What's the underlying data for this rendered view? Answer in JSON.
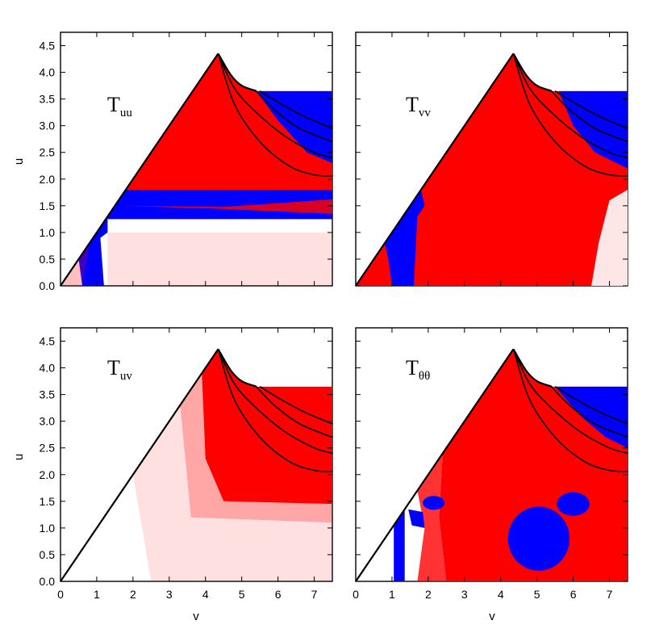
{
  "chart_data": {
    "type": "heatmap",
    "colors": {
      "positive": "#ff0000",
      "negative": "#0000ff",
      "zero": "#ffffff",
      "curve": "#000000"
    },
    "shared_axes": {
      "xlabel": "v",
      "ylabel": "u",
      "xlim": [
        0,
        7.5
      ],
      "ylim": [
        0,
        4.75
      ],
      "xticks": [
        "0",
        "1",
        "2",
        "3",
        "4",
        "5",
        "6",
        "7"
      ],
      "yticks": [
        "0.0",
        "0.5",
        "1.0",
        "1.5",
        "2.0",
        "2.5",
        "3.0",
        "3.5",
        "4.0",
        "4.5"
      ]
    },
    "domain_boundary": {
      "diagonal": [
        [
          0,
          0
        ],
        [
          4.35,
          4.35
        ]
      ],
      "apex": [
        4.35,
        4.35
      ],
      "outer_curve": [
        [
          4.35,
          4.35
        ],
        [
          4.7,
          3.95
        ],
        [
          5.0,
          3.75
        ],
        [
          5.4,
          3.65
        ]
      ],
      "cutoff_u": 3.65,
      "inner_curves": [
        [
          [
            4.35,
            4.35
          ],
          [
            4.8,
            3.4
          ],
          [
            5.5,
            2.7
          ],
          [
            6.3,
            2.25
          ],
          [
            7.0,
            2.08
          ],
          [
            7.5,
            2.06
          ]
        ],
        [
          [
            4.35,
            4.35
          ],
          [
            4.8,
            3.7
          ],
          [
            5.4,
            3.25
          ],
          [
            6.2,
            2.8
          ],
          [
            7.0,
            2.5
          ],
          [
            7.5,
            2.4
          ]
        ],
        [
          [
            5.4,
            3.65
          ],
          [
            5.9,
            3.3
          ],
          [
            6.6,
            2.95
          ],
          [
            7.5,
            2.7
          ]
        ],
        [
          [
            5.5,
            3.65
          ],
          [
            6.1,
            3.4
          ],
          [
            6.8,
            3.15
          ],
          [
            7.5,
            2.95
          ]
        ]
      ]
    },
    "panels": [
      {
        "id": "Tuu",
        "label_main": "T",
        "label_sub": "uu",
        "position": "top-left"
      },
      {
        "id": "Tvv",
        "label_main": "T",
        "label_sub": "vv",
        "position": "top-right"
      },
      {
        "id": "Tuv",
        "label_main": "T",
        "label_sub": "uv",
        "position": "bottom-left"
      },
      {
        "id": "Ttt",
        "label_main": "T",
        "label_sub": "θθ",
        "position": "bottom-right"
      }
    ]
  }
}
